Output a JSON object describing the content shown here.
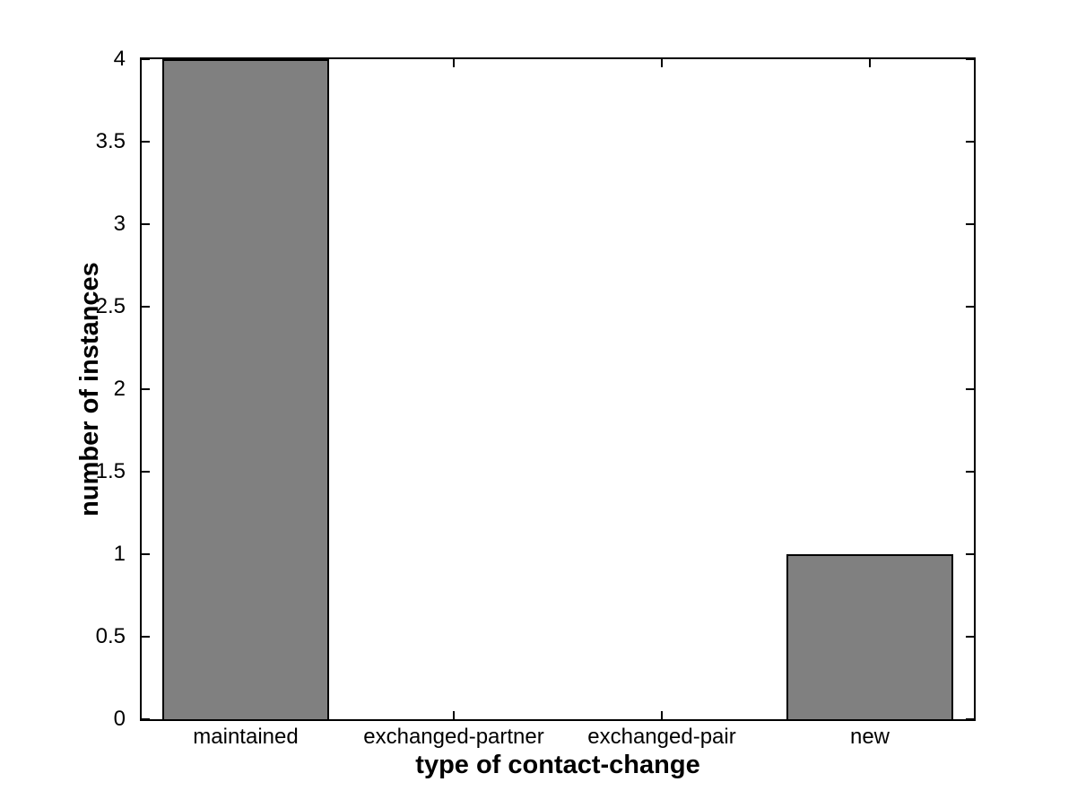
{
  "figure": {
    "background": "#ffffff"
  },
  "chart_data": {
    "type": "bar",
    "categories": [
      "maintained",
      "exchanged-partner",
      "exchanged-pair",
      "new"
    ],
    "values": [
      4,
      0,
      0,
      1
    ],
    "xlabel": "type of contact-change",
    "ylabel": "number of instances",
    "ylim": [
      0,
      4
    ],
    "yticks": [
      0,
      0.5,
      1,
      1.5,
      2,
      2.5,
      3,
      3.5,
      4
    ],
    "bar_color": "#808080",
    "bar_edge_color": "#000000",
    "axis_color": "#000000",
    "text_color": "#000000",
    "bar_width_ratio": 0.8,
    "grid": false,
    "box": true,
    "tick_direction": "in"
  }
}
